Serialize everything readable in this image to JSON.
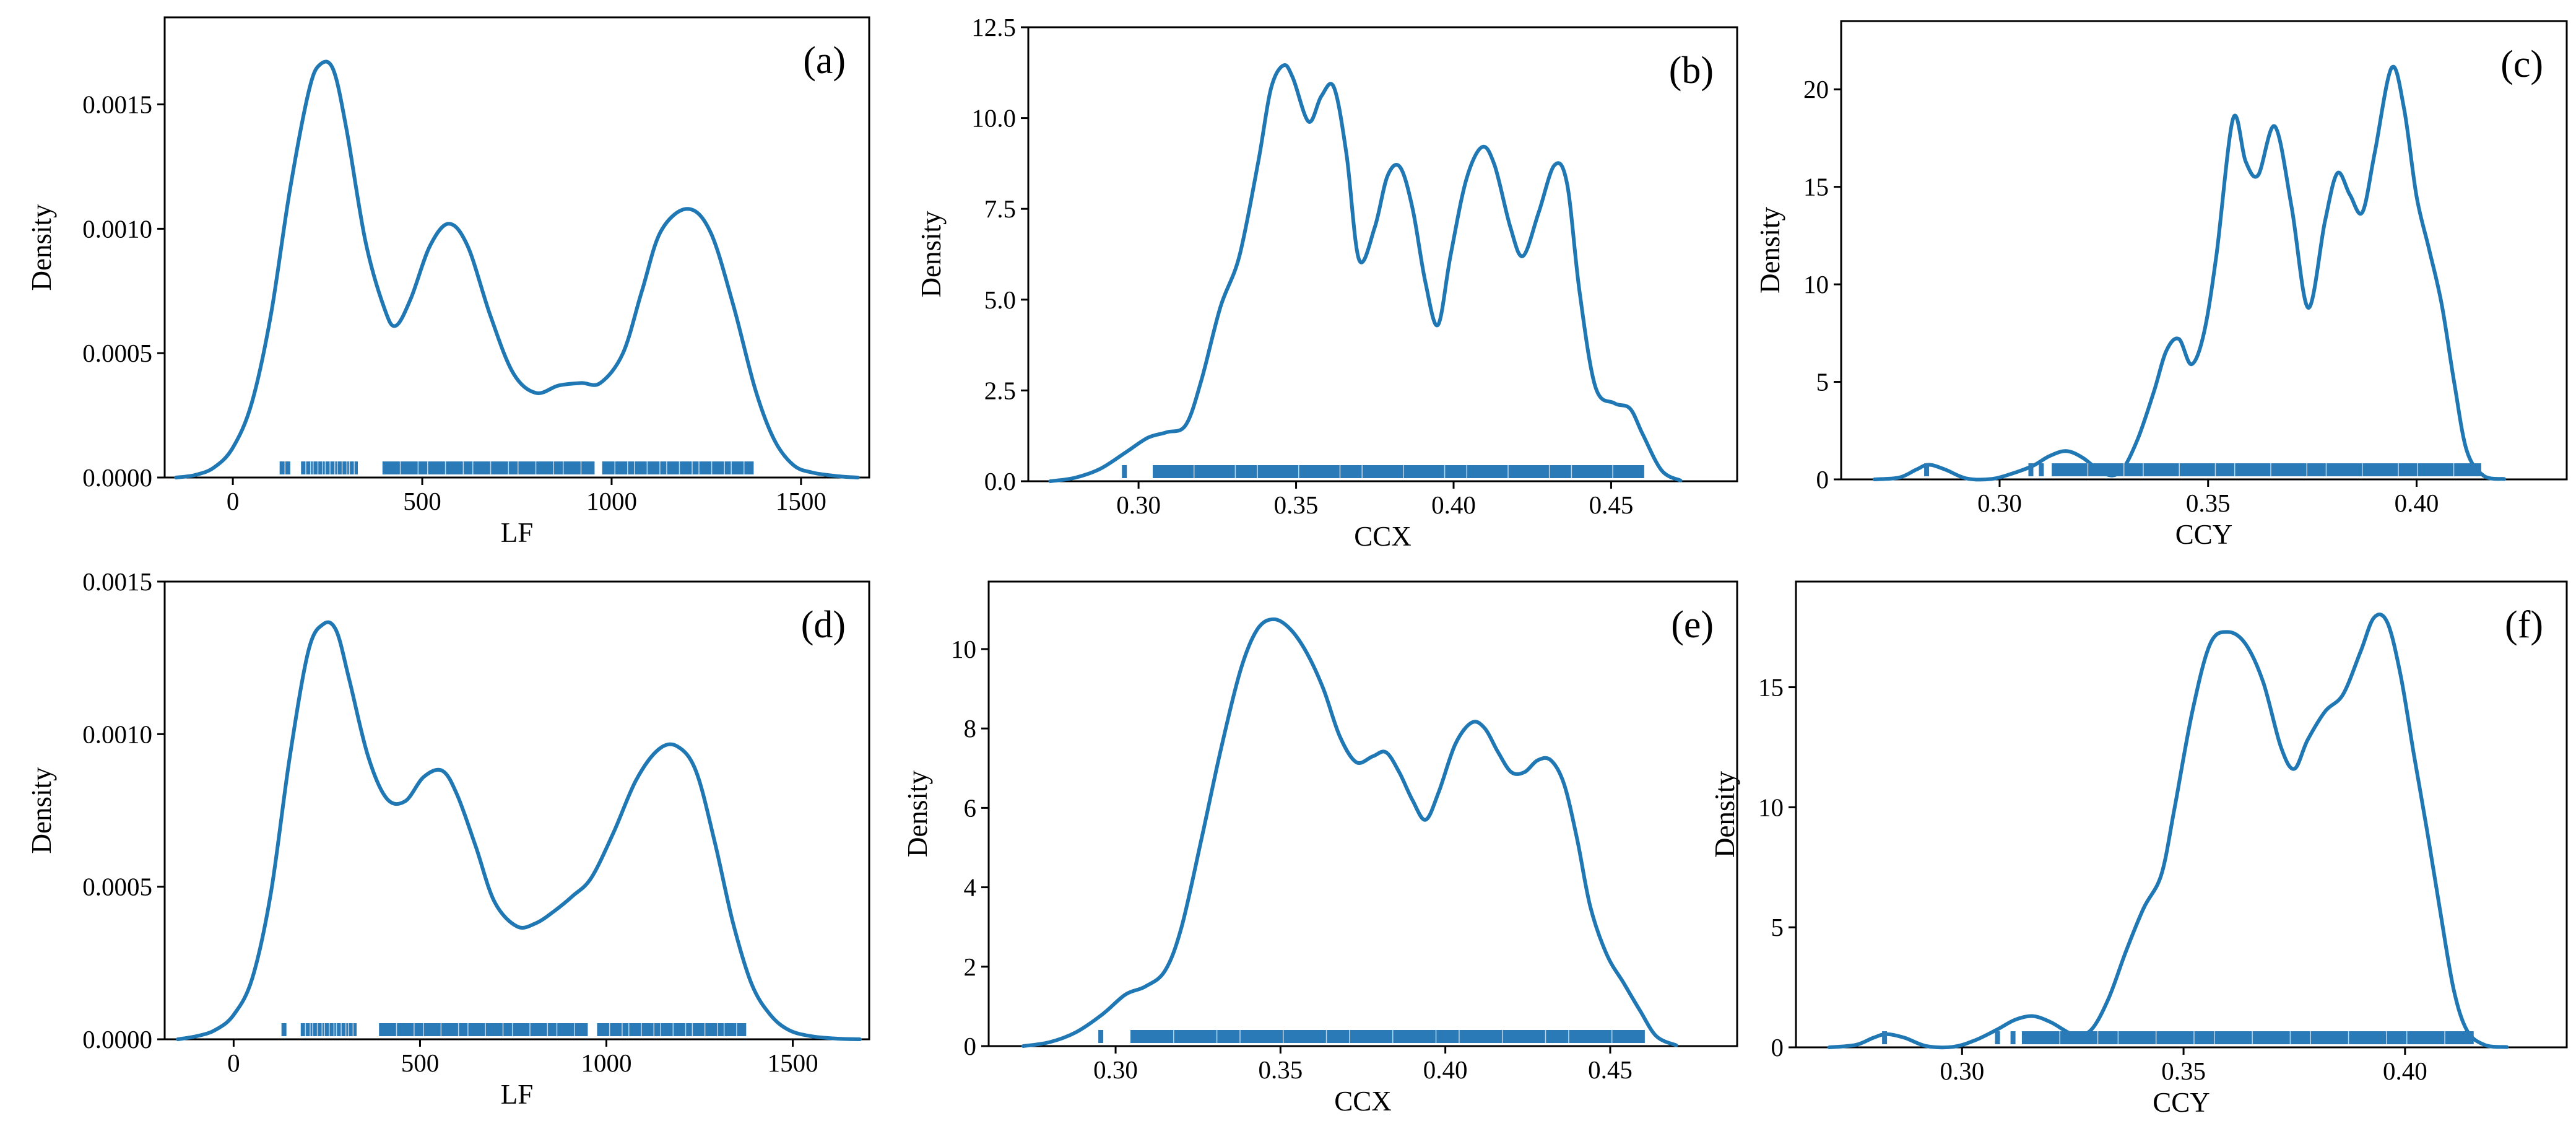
{
  "colors": {
    "line": "#1f77b4",
    "rug": "#2a7ab8",
    "axes": "#000000",
    "background": "#ffffff"
  },
  "chart_data": [
    {
      "type": "line",
      "panel_label": "(a)",
      "xlabel": "LF",
      "ylabel": "Density",
      "xlim": [
        -180,
        1680
      ],
      "ylim": [
        0,
        0.00185
      ],
      "xticks": [
        0,
        500,
        1000,
        1500
      ],
      "xtick_labels": [
        "0",
        "500",
        "1000",
        "1500"
      ],
      "yticks": [
        0,
        0.0005,
        0.001,
        0.0015
      ],
      "ytick_labels": [
        "0.0000",
        "0.0005",
        "0.0010",
        "0.0015"
      ],
      "series": [
        {
          "name": "kde",
          "x": [
            -150,
            -100,
            -50,
            0,
            50,
            100,
            150,
            200,
            230,
            265,
            300,
            350,
            400,
            430,
            470,
            520,
            570,
            620,
            680,
            740,
            800,
            860,
            920,
            970,
            1030,
            1080,
            1130,
            1200,
            1260,
            1320,
            1380,
            1430,
            1480,
            1530,
            1600,
            1650
          ],
          "y": [
            0,
            1e-05,
            4e-05,
            0.00012,
            0.0003,
            0.00065,
            0.00115,
            0.00155,
            0.00166,
            0.00164,
            0.0014,
            0.00095,
            0.00068,
            0.00061,
            0.00072,
            0.00093,
            0.00102,
            0.00093,
            0.00065,
            0.00042,
            0.00034,
            0.00037,
            0.00038,
            0.00038,
            0.0005,
            0.00075,
            0.00099,
            0.00108,
            0.00099,
            0.0007,
            0.00035,
            0.00015,
            5e-05,
            2e-05,
            5e-06,
            0
          ]
        }
      ],
      "rug": [
        {
          "kind": "tick",
          "at": 130
        },
        {
          "kind": "tick",
          "at": 145
        },
        {
          "kind": "band",
          "from": 180,
          "to": 330
        },
        {
          "kind": "band",
          "from": 395,
          "to": 955
        },
        {
          "kind": "band",
          "from": 975,
          "to": 1375
        }
      ]
    },
    {
      "type": "line",
      "panel_label": "(b)",
      "xlabel": "CCX",
      "ylabel": "Density",
      "xlim": [
        0.265,
        0.49
      ],
      "ylim": [
        0,
        12.5
      ],
      "xticks": [
        0.3,
        0.35,
        0.4,
        0.45
      ],
      "xtick_labels": [
        "0.30",
        "0.35",
        "0.40",
        "0.45"
      ],
      "yticks": [
        0,
        2.5,
        5,
        7.5,
        10,
        12.5
      ],
      "ytick_labels": [
        "0.0",
        "2.5",
        "5.0",
        "7.5",
        "10.0",
        "12.5"
      ],
      "series": [
        {
          "name": "kde",
          "x": [
            0.272,
            0.28,
            0.288,
            0.296,
            0.303,
            0.309,
            0.315,
            0.32,
            0.326,
            0.332,
            0.338,
            0.342,
            0.346,
            0.349,
            0.354,
            0.358,
            0.362,
            0.366,
            0.37,
            0.375,
            0.379,
            0.383,
            0.387,
            0.391,
            0.395,
            0.399,
            0.404,
            0.409,
            0.413,
            0.418,
            0.422,
            0.427,
            0.432,
            0.436,
            0.44,
            0.445,
            0.451,
            0.456,
            0.46,
            0.466,
            0.472
          ],
          "y": [
            0,
            0.1,
            0.35,
            0.8,
            1.2,
            1.35,
            1.55,
            2.8,
            4.8,
            6.2,
            8.8,
            10.8,
            11.45,
            11.1,
            9.9,
            10.6,
            10.85,
            9.0,
            6.1,
            7.0,
            8.4,
            8.65,
            7.5,
            5.5,
            4.3,
            6.2,
            8.3,
            9.2,
            8.7,
            7.0,
            6.2,
            7.4,
            8.7,
            8.2,
            5.2,
            2.6,
            2.15,
            2.0,
            1.3,
            0.3,
            0.02
          ]
        }
      ],
      "rug": [
        {
          "kind": "tick",
          "at": 0.2955
        },
        {
          "kind": "band",
          "from": 0.3045,
          "to": 0.4605
        }
      ]
    },
    {
      "type": "line",
      "panel_label": "(c)",
      "xlabel": "CCY",
      "ylabel": "Density",
      "xlim": [
        0.262,
        0.436
      ],
      "ylim": [
        0,
        23.5
      ],
      "xticks": [
        0.3,
        0.35,
        0.4
      ],
      "xtick_labels": [
        "0.30",
        "0.35",
        "0.40"
      ],
      "yticks": [
        0,
        5,
        10,
        15,
        20
      ],
      "ytick_labels": [
        "0",
        "5",
        "10",
        "15",
        "20"
      ],
      "series": [
        {
          "name": "kde",
          "x": [
            0.27,
            0.276,
            0.28,
            0.283,
            0.287,
            0.292,
            0.298,
            0.303,
            0.308,
            0.312,
            0.316,
            0.32,
            0.325,
            0.329,
            0.333,
            0.337,
            0.34,
            0.343,
            0.346,
            0.349,
            0.352,
            0.356,
            0.359,
            0.362,
            0.366,
            0.37,
            0.374,
            0.378,
            0.381,
            0.384,
            0.387,
            0.39,
            0.394,
            0.397,
            0.4,
            0.403,
            0.406,
            0.409,
            0.412,
            0.416,
            0.421
          ],
          "y": [
            0,
            0.1,
            0.5,
            0.75,
            0.5,
            0.05,
            0.02,
            0.3,
            0.7,
            1.2,
            1.45,
            1.1,
            0.3,
            0.4,
            2.0,
            4.5,
            6.6,
            7.2,
            5.9,
            7.5,
            11.5,
            18.5,
            16.3,
            15.6,
            18.1,
            14.0,
            8.8,
            13.2,
            15.7,
            14.6,
            13.7,
            16.8,
            21.1,
            19.0,
            14.5,
            11.8,
            9.0,
            5.0,
            1.5,
            0.2,
            0.02
          ]
        }
      ],
      "rug": [
        {
          "kind": "tick",
          "at": 0.2825
        },
        {
          "kind": "tick",
          "at": 0.3075
        },
        {
          "kind": "tick",
          "at": 0.31
        },
        {
          "kind": "band",
          "from": 0.3125,
          "to": 0.4155
        }
      ]
    },
    {
      "type": "line",
      "panel_label": "(d)",
      "xlabel": "LF",
      "ylabel": "Density",
      "xlim": [
        -185,
        1705
      ],
      "ylim": [
        0,
        0.0015
      ],
      "xticks": [
        0,
        500,
        1000,
        1500
      ],
      "xtick_labels": [
        "0",
        "500",
        "1000",
        "1500"
      ],
      "yticks": [
        0,
        0.0005,
        0.001,
        0.0015
      ],
      "ytick_labels": [
        "0.0000",
        "0.0005",
        "0.0010",
        "0.0015"
      ],
      "series": [
        {
          "name": "kde",
          "x": [
            -150,
            -100,
            -50,
            0,
            50,
            100,
            150,
            200,
            240,
            275,
            310,
            360,
            410,
            460,
            510,
            560,
            600,
            650,
            700,
            760,
            810,
            860,
            910,
            960,
            1020,
            1080,
            1140,
            1190,
            1240,
            1290,
            1340,
            1390,
            1440,
            1490,
            1550,
            1620,
            1680
          ],
          "y": [
            0,
            1e-05,
            3e-05,
            8e-05,
            0.0002,
            0.00048,
            0.00092,
            0.00127,
            0.00136,
            0.00134,
            0.00118,
            0.00093,
            0.00079,
            0.00078,
            0.00086,
            0.00088,
            0.0008,
            0.00063,
            0.00045,
            0.00037,
            0.00038,
            0.00042,
            0.00047,
            0.00053,
            0.00068,
            0.00085,
            0.00095,
            0.00096,
            0.00088,
            0.00065,
            0.00038,
            0.00018,
            8e-05,
            3e-05,
            1e-05,
            2e-06,
            0
          ]
        }
      ],
      "rug": [
        {
          "kind": "tick",
          "at": 135
        },
        {
          "kind": "band",
          "from": 180,
          "to": 330
        },
        {
          "kind": "band",
          "from": 390,
          "to": 950
        },
        {
          "kind": "band",
          "from": 975,
          "to": 1375
        }
      ]
    },
    {
      "type": "line",
      "panel_label": "(e)",
      "xlabel": "CCX",
      "ylabel": "Density",
      "xlim": [
        0.2615,
        0.4885
      ],
      "ylim": [
        0,
        11.7
      ],
      "xticks": [
        0.3,
        0.35,
        0.4,
        0.45
      ],
      "xtick_labels": [
        "0.30",
        "0.35",
        "0.40",
        "0.45"
      ],
      "yticks": [
        0,
        2,
        4,
        6,
        8,
        10
      ],
      "ytick_labels": [
        "0",
        "2",
        "4",
        "6",
        "8",
        "10"
      ],
      "series": [
        {
          "name": "kde",
          "x": [
            0.272,
            0.28,
            0.288,
            0.296,
            0.303,
            0.309,
            0.315,
            0.32,
            0.326,
            0.332,
            0.338,
            0.343,
            0.348,
            0.353,
            0.358,
            0.363,
            0.368,
            0.373,
            0.378,
            0.382,
            0.386,
            0.39,
            0.394,
            0.398,
            0.403,
            0.408,
            0.412,
            0.416,
            0.42,
            0.424,
            0.428,
            0.432,
            0.436,
            0.44,
            0.444,
            0.449,
            0.454,
            0.459,
            0.464,
            0.47
          ],
          "y": [
            0,
            0.1,
            0.35,
            0.8,
            1.3,
            1.5,
            1.9,
            3.0,
            5.2,
            7.5,
            9.5,
            10.5,
            10.75,
            10.5,
            9.9,
            9.0,
            7.8,
            7.15,
            7.3,
            7.4,
            6.9,
            6.2,
            5.7,
            6.4,
            7.6,
            8.15,
            8.0,
            7.4,
            6.9,
            6.9,
            7.2,
            7.2,
            6.6,
            5.2,
            3.5,
            2.3,
            1.6,
            0.9,
            0.25,
            0.02
          ]
        }
      ],
      "rug": [
        {
          "kind": "tick",
          "at": 0.2955
        },
        {
          "kind": "band",
          "from": 0.3045,
          "to": 0.4605
        }
      ]
    },
    {
      "type": "line",
      "panel_label": "(f)",
      "xlabel": "CCY",
      "ylabel": "Density",
      "xlim": [
        0.2625,
        0.4365
      ],
      "ylim": [
        0,
        19.4
      ],
      "xticks": [
        0.3,
        0.35,
        0.4
      ],
      "xtick_labels": [
        "0.30",
        "0.35",
        "0.40"
      ],
      "yticks": [
        0,
        5,
        10,
        15
      ],
      "ytick_labels": [
        "0",
        "5",
        "10",
        "15"
      ],
      "series": [
        {
          "name": "kde",
          "x": [
            0.27,
            0.276,
            0.28,
            0.283,
            0.287,
            0.292,
            0.298,
            0.303,
            0.308,
            0.312,
            0.316,
            0.32,
            0.325,
            0.329,
            0.333,
            0.337,
            0.341,
            0.345,
            0.348,
            0.352,
            0.356,
            0.36,
            0.364,
            0.368,
            0.372,
            0.375,
            0.378,
            0.382,
            0.386,
            0.39,
            0.393,
            0.396,
            0.399,
            0.402,
            0.405,
            0.408,
            0.411,
            0.414,
            0.418,
            0.423
          ],
          "y": [
            0,
            0.1,
            0.4,
            0.55,
            0.4,
            0.05,
            0.02,
            0.3,
            0.75,
            1.15,
            1.3,
            1.05,
            0.55,
            0.7,
            2.0,
            4.0,
            5.8,
            7.2,
            10.0,
            14.0,
            16.8,
            17.3,
            16.8,
            15.2,
            12.5,
            11.6,
            12.8,
            14.0,
            14.7,
            16.5,
            17.9,
            17.7,
            15.5,
            12.2,
            9.0,
            5.6,
            2.4,
            0.7,
            0.1,
            0.01
          ]
        }
      ],
      "rug": [
        {
          "kind": "tick",
          "at": 0.2825
        },
        {
          "kind": "tick",
          "at": 0.308
        },
        {
          "kind": "tick",
          "at": 0.3115
        },
        {
          "kind": "band",
          "from": 0.3135,
          "to": 0.4155
        }
      ]
    }
  ]
}
